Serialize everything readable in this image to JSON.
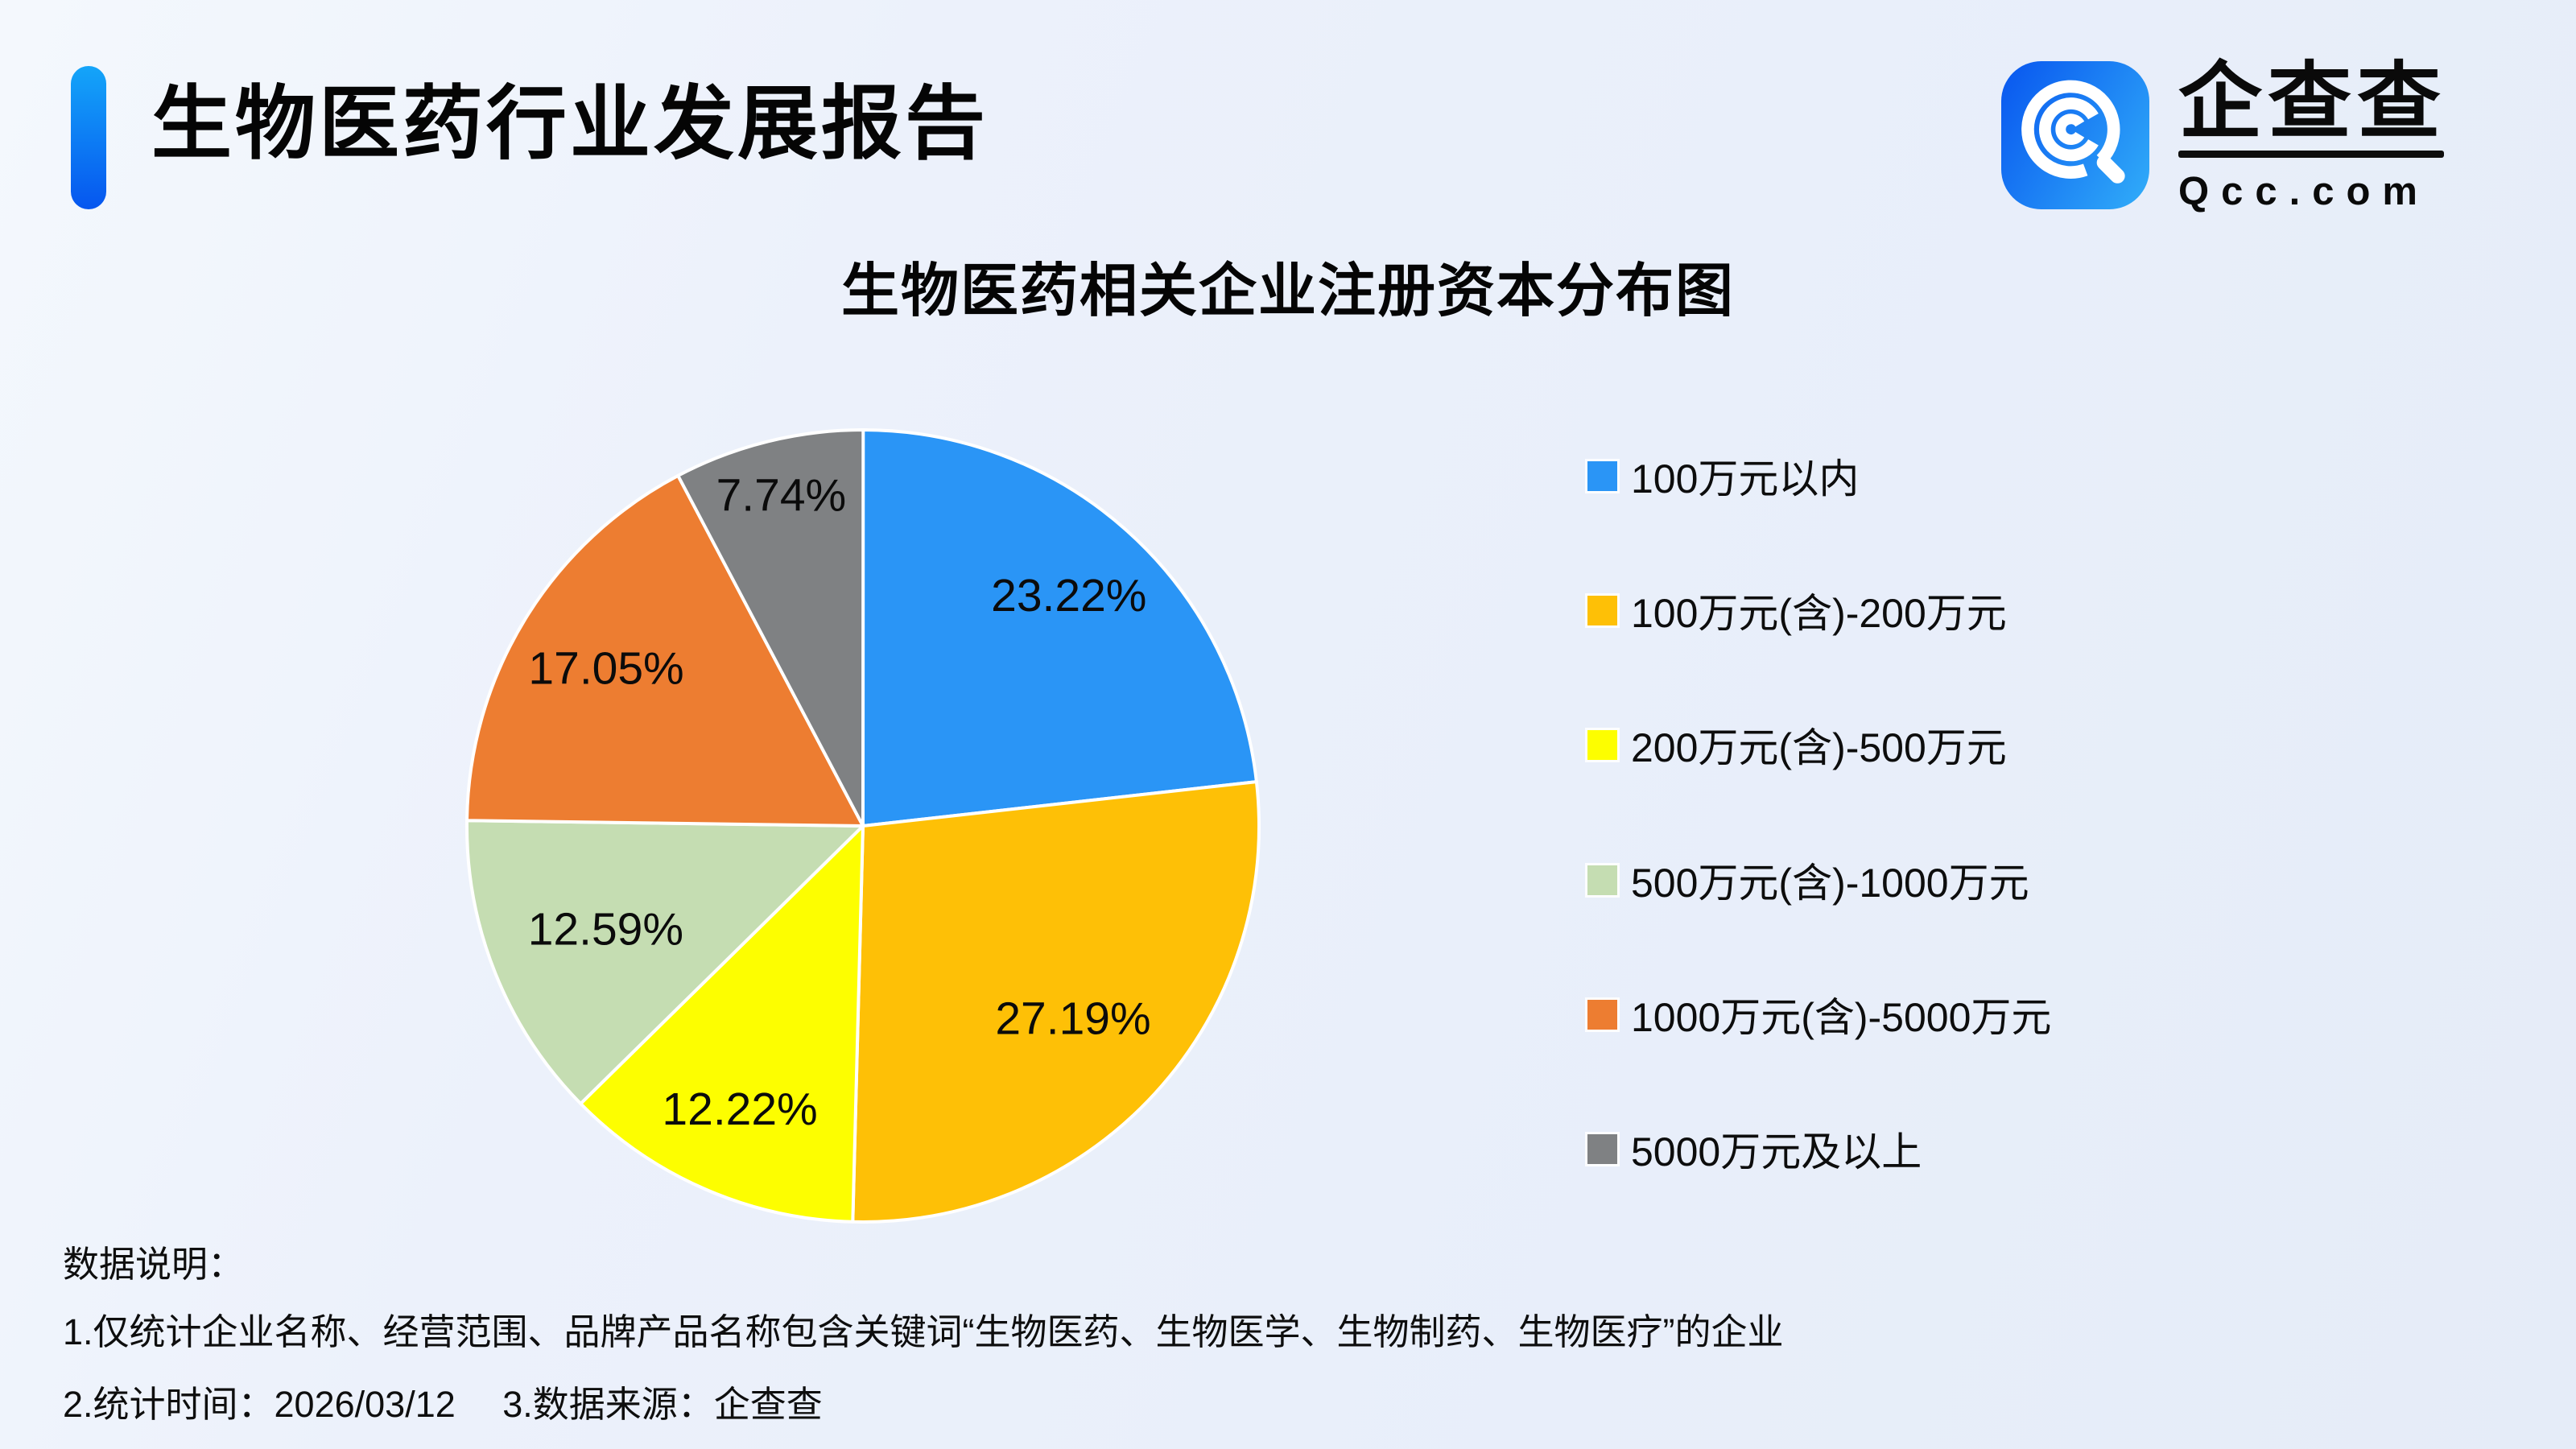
{
  "page": {
    "background_top": "#f4f8fd",
    "background_bottom": "#e5ecf8"
  },
  "header": {
    "title": "生物医药行业发展报告",
    "accent_color_top": "#14a5f9",
    "accent_color_bottom": "#0656ef"
  },
  "logo": {
    "name": "企查查",
    "domain": "Qcc.com",
    "icon_gradient_left": "#0b5cf0",
    "icon_gradient_right": "#2ea7f8"
  },
  "chart": {
    "title": "生物医药相关企业注册资本分布图"
  },
  "chart_data": {
    "type": "pie",
    "title": "生物医药相关企业注册资本分布图",
    "labels": [
      "100万元以内",
      "100万元(含)-200万元",
      "200万元(含)-500万元",
      "500万元(含)-1000万元",
      "1000万元(含)-5000万元",
      "5000万元及以上"
    ],
    "values": [
      23.22,
      27.19,
      12.22,
      12.59,
      17.05,
      7.74
    ],
    "value_labels": [
      "23.22%",
      "27.19%",
      "12.22%",
      "12.59%",
      "17.05%",
      "7.74%"
    ],
    "colors": [
      "#2a95f6",
      "#fec006",
      "#fdfe00",
      "#c5ddb2",
      "#ed7d31",
      "#7f8183"
    ],
    "start_angle": "top",
    "direction": "clockwise",
    "legend_position": "right",
    "slice_border_color": "#ffffff",
    "label_distances": [
      0.78,
      0.72,
      0.78,
      0.7,
      0.76,
      0.86
    ]
  },
  "notes": {
    "heading": "数据说明：",
    "line1": "1.仅统计企业名称、经营范围、品牌产品名称包含关键词“生物医药、生物医学、生物制药、生物医疗”的企业",
    "line2_part1": "2.统计时间：2026/03/12",
    "line2_part2": "3.数据来源：企查查"
  }
}
